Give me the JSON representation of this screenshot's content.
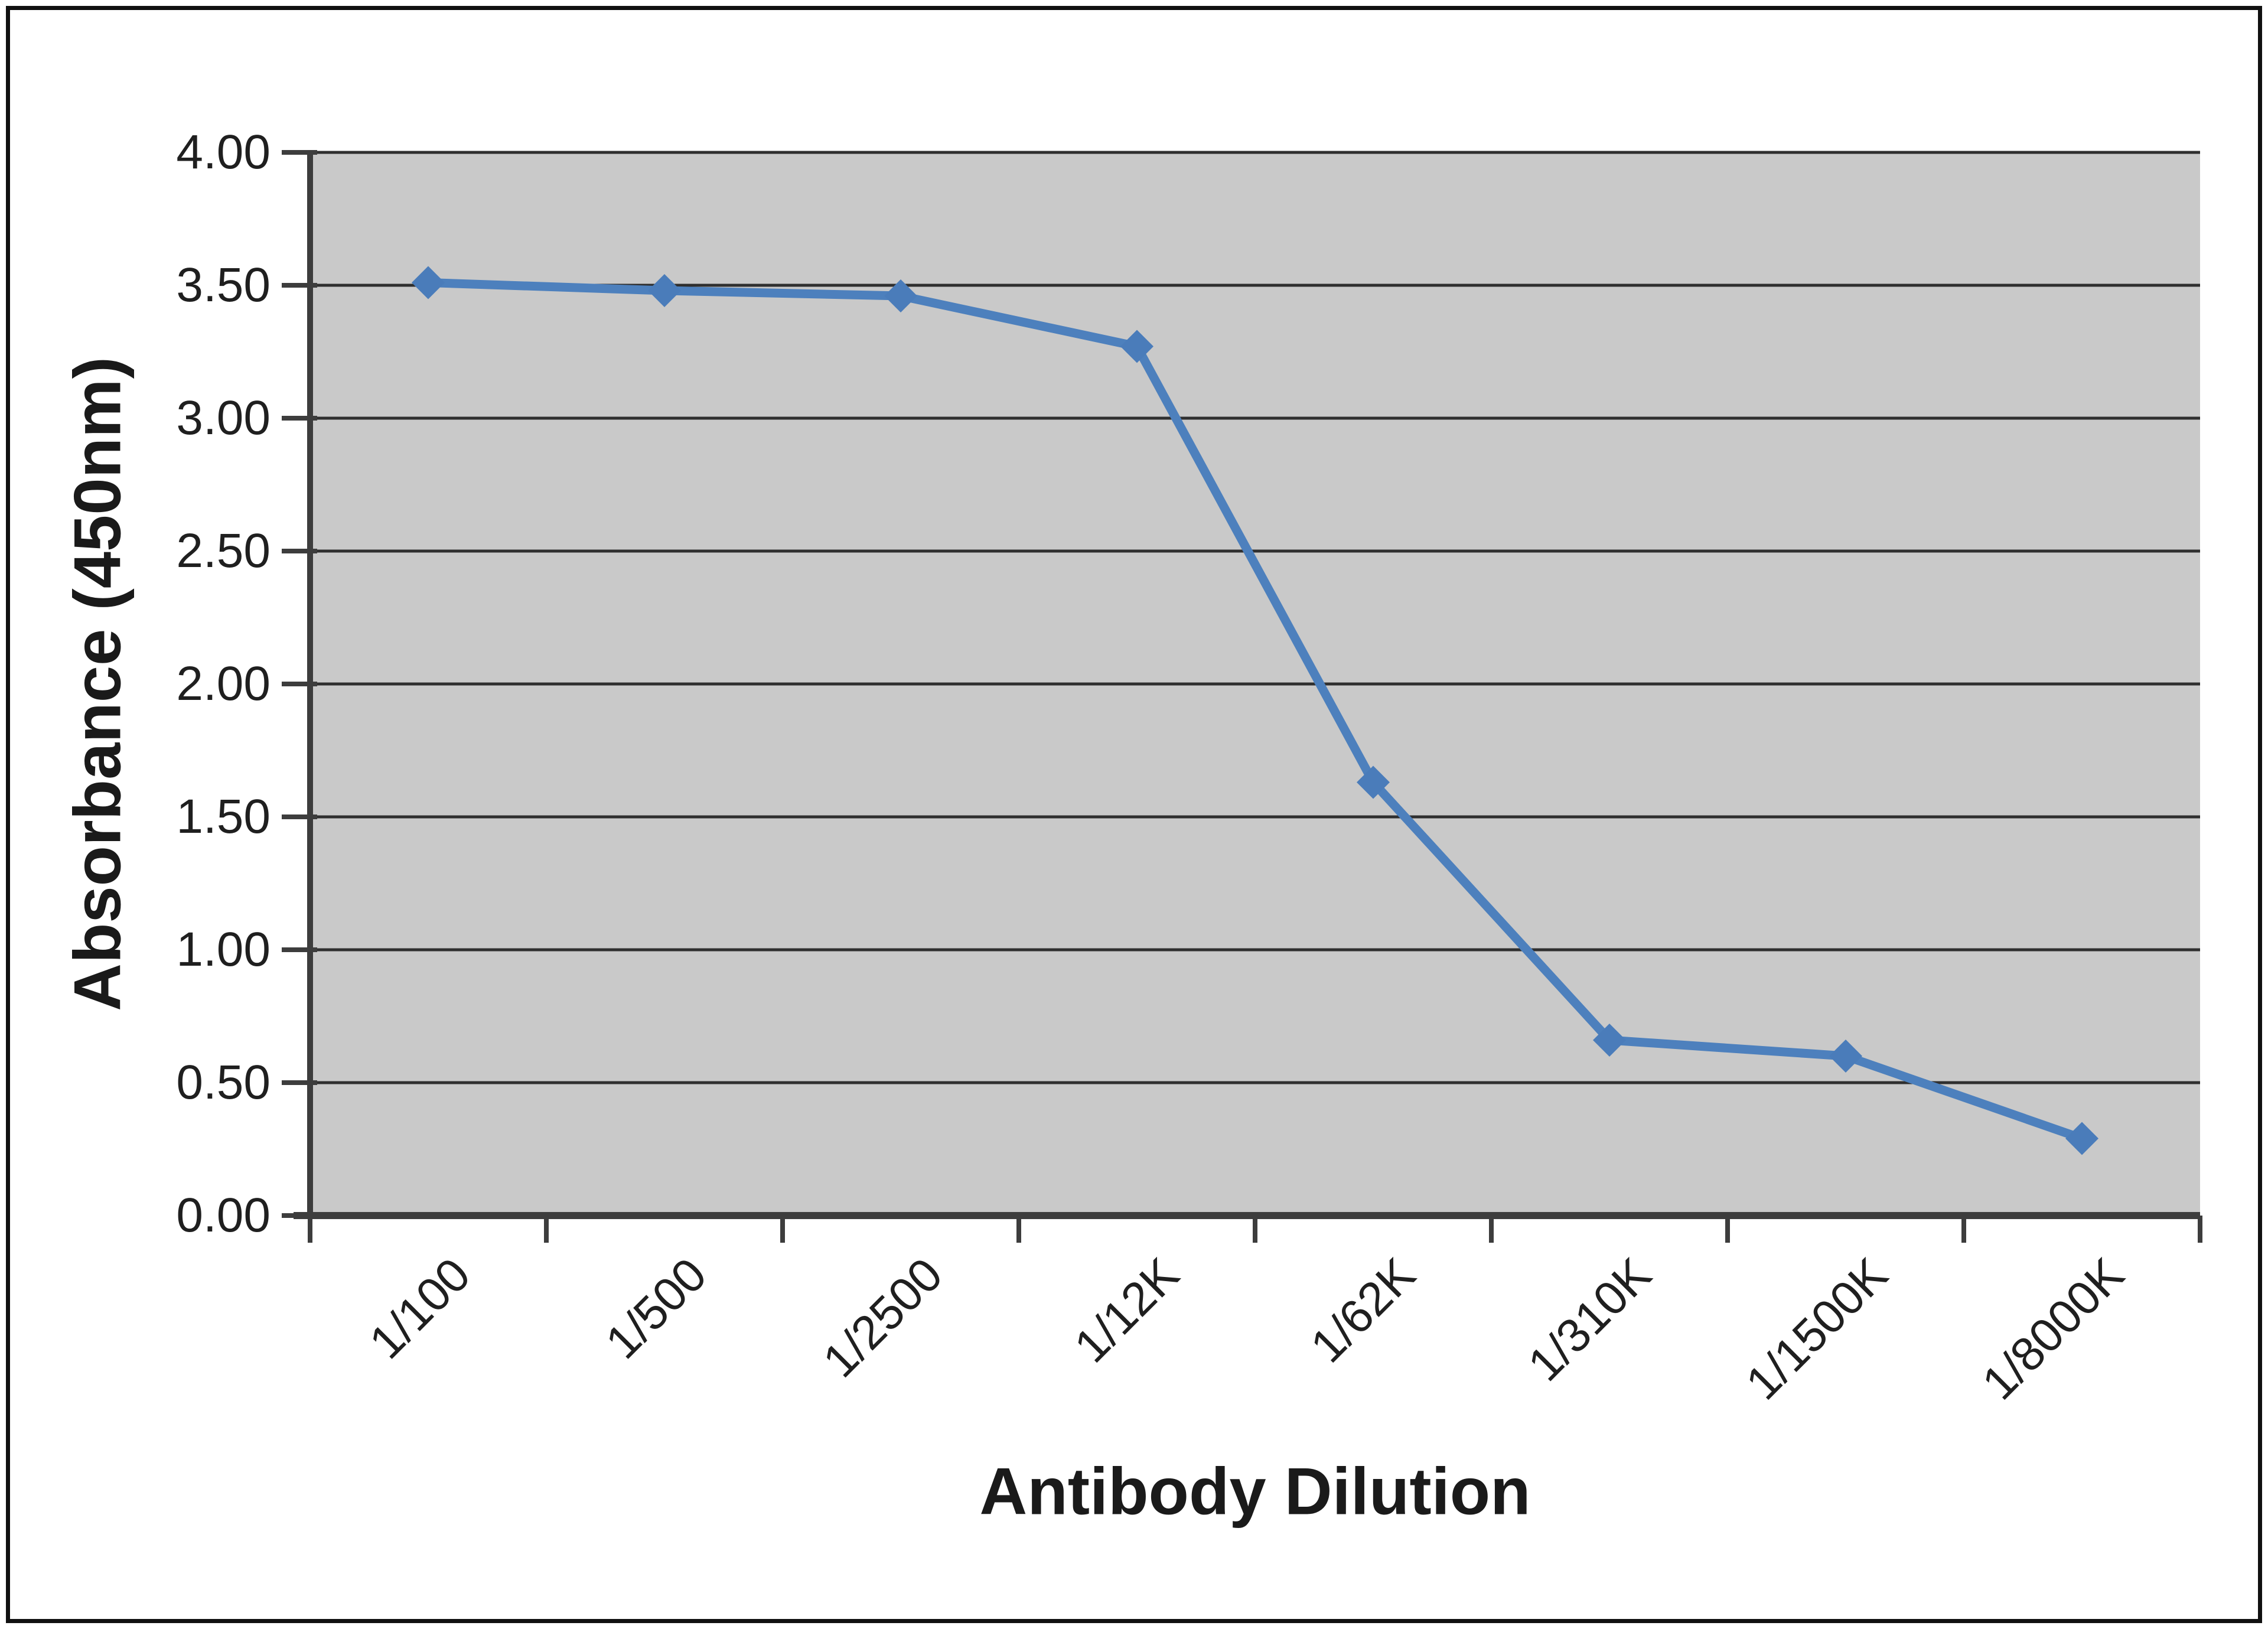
{
  "chart_data": {
    "type": "line",
    "title": "",
    "xlabel": "Antibody Dilution",
    "ylabel": "Absorbance (450nm)",
    "categories": [
      "1/100",
      "1/500",
      "1/2500",
      "1/12K",
      "1/62K",
      "1/310K",
      "1/1500K",
      "1/8000K"
    ],
    "series": [
      {
        "name": "Absorbance (450nm)",
        "values": [
          3.51,
          3.48,
          3.46,
          3.27,
          1.63,
          0.66,
          0.6,
          0.29
        ]
      }
    ],
    "ylim": [
      0,
      4
    ],
    "ytick_step": 0.5,
    "y_tick_labels": [
      "0.00",
      "0.50",
      "1.00",
      "1.50",
      "2.00",
      "2.50",
      "3.00",
      "3.50",
      "4.00"
    ],
    "grid": "horizontal-only",
    "legend_position": "none",
    "marker_shape": "diamond",
    "colors": {
      "line": "#4d80bd",
      "marker": "#4a7cba",
      "plot_background": "#c9c9c9",
      "gridline": "#2f2f2f",
      "axis": "#3d3d3d",
      "text": "#1f1f1f",
      "frame_border": "#111111",
      "page_background": "#ffffff"
    }
  }
}
